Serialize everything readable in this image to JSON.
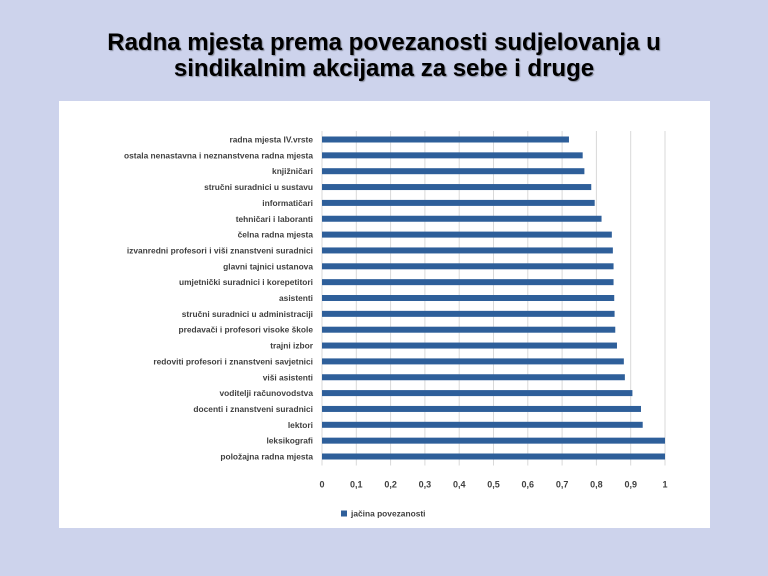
{
  "slide": {
    "title_line1": "Radna mjesta prema povezanosti sudjelovanja u",
    "title_line2": "sindikalnim akcijama za sebe i druge"
  },
  "colors": {
    "background": "#cdd3ec",
    "bar": "#2e5f9a",
    "grid": "#d9d9d9",
    "label": "#404040"
  },
  "chart_data": {
    "type": "bar",
    "orientation": "horizontal",
    "categories": [
      "radna mjesta IV.vrste",
      "ostala nenastavna i neznanstvena radna mjesta",
      "knjižničari",
      "stručni suradnici u sustavu",
      "informatičari",
      "tehničari i laboranti",
      "čelna radna mjesta",
      "izvanredni profesori i viši znanstveni suradnici",
      "glavni tajnici ustanova",
      "umjetnički suradnici i korepetitori",
      "asistenti",
      "stručni suradnici u administraciji",
      "predavači i profesori visoke škole",
      "trajni izbor",
      "redoviti profesori i znanstveni savjetnici",
      "viši asistenti",
      "voditelji računovodstva",
      "docenti i znanstveni suradnici",
      "lektori",
      "leksikografi",
      "položajna radna mjesta"
    ],
    "series": [
      {
        "name": "jačina povezanosti",
        "values": [
          0.72,
          0.76,
          0.765,
          0.785,
          0.795,
          0.815,
          0.845,
          0.848,
          0.85,
          0.85,
          0.852,
          0.853,
          0.855,
          0.86,
          0.88,
          0.883,
          0.905,
          0.93,
          0.935,
          1.0,
          1.0
        ]
      }
    ],
    "xlim": [
      0,
      1
    ],
    "xticks": [
      "0",
      "0,1",
      "0,2",
      "0,3",
      "0,4",
      "0,5",
      "0,6",
      "0,7",
      "0,8",
      "0,9",
      "1"
    ],
    "grid": true,
    "legend_position": "bottom-left"
  }
}
